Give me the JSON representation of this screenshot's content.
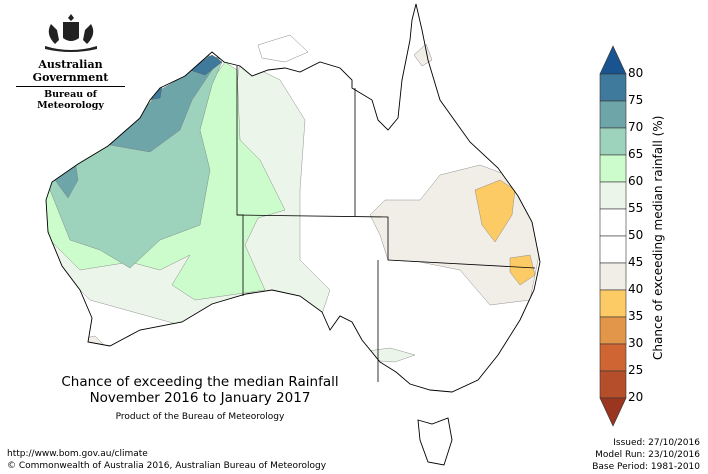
{
  "header": {
    "org_line1": "Australian Government",
    "org_line2": "Bureau of Meteorology"
  },
  "title": {
    "line1": "Chance of exceeding the median Rainfall",
    "line2": "November 2016 to January 2017",
    "product": "Product of the Bureau of Meteorology"
  },
  "footer": {
    "url": "http://www.bom.gov.au/climate",
    "copyright": "© Commonwealth of Australia 2016, Australian Bureau of Meteorology"
  },
  "meta": {
    "issued": "Issued: 27/10/2016",
    "model_run": "Model Run: 23/10/2016",
    "base_period": "Base Period: 1981-2010"
  },
  "legend": {
    "label": "Chance of exceeding median rainfall (%)",
    "ticks": [
      "80",
      "75",
      "70",
      "65",
      "60",
      "55",
      "50",
      "45",
      "40",
      "35",
      "30",
      "25",
      "20"
    ],
    "colors": [
      "#3f7a9c",
      "#6ea5a9",
      "#9dd3bd",
      "#ccfccc",
      "#ebf5e9",
      "#ffffff",
      "#ffffff",
      "#f1ede7",
      "#fdcb65",
      "#e2964a",
      "#cf6532",
      "#b54f2b"
    ],
    "over_color": "#1a5490",
    "under_color": "#9a3520"
  }
}
